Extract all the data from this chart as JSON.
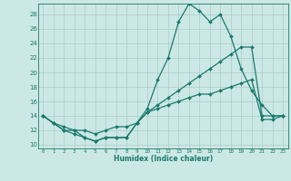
{
  "line1": {
    "x": [
      0,
      1,
      2,
      3,
      4,
      5,
      6,
      7,
      8,
      9,
      10,
      11,
      12,
      13,
      14,
      15,
      16,
      17,
      18,
      19,
      20,
      21,
      22,
      23
    ],
    "y": [
      14,
      13,
      12,
      12,
      11,
      10.5,
      11,
      11,
      11,
      13,
      15,
      19,
      22,
      27,
      29.5,
      28.5,
      27,
      28,
      25,
      20.5,
      17.5,
      15.5,
      14,
      14
    ],
    "color": "#1a7a6e",
    "marker": "D",
    "markersize": 2.0,
    "linewidth": 0.9
  },
  "line2": {
    "x": [
      0,
      1,
      2,
      3,
      4,
      5,
      6,
      7,
      8,
      9,
      10,
      11,
      12,
      13,
      14,
      15,
      16,
      17,
      18,
      19,
      20,
      21,
      22,
      23
    ],
    "y": [
      14,
      13,
      12.5,
      12,
      12,
      11.5,
      12,
      12.5,
      12.5,
      13,
      14.5,
      15.5,
      16.5,
      17.5,
      18.5,
      19.5,
      20.5,
      21.5,
      22.5,
      23.5,
      23.5,
      14,
      14,
      14
    ],
    "color": "#1a7a6e",
    "marker": "D",
    "markersize": 2.0,
    "linewidth": 0.9
  },
  "line3": {
    "x": [
      0,
      1,
      2,
      3,
      4,
      5,
      6,
      7,
      8,
      9,
      10,
      11,
      12,
      13,
      14,
      15,
      16,
      17,
      18,
      19,
      20,
      21,
      22,
      23
    ],
    "y": [
      14,
      13,
      12,
      11.5,
      11,
      10.5,
      11,
      11,
      11,
      13,
      14.5,
      15,
      15.5,
      16,
      16.5,
      17,
      17,
      17.5,
      18,
      18.5,
      19,
      13.5,
      13.5,
      14
    ],
    "color": "#1a7a6e",
    "marker": "D",
    "markersize": 2.0,
    "linewidth": 0.9
  },
  "ylim": [
    9.5,
    29.5
  ],
  "xlim": [
    -0.5,
    23.5
  ],
  "yticks": [
    10,
    12,
    14,
    16,
    18,
    20,
    22,
    24,
    26,
    28
  ],
  "xticks": [
    0,
    1,
    2,
    3,
    4,
    5,
    6,
    7,
    8,
    9,
    10,
    11,
    12,
    13,
    14,
    15,
    16,
    17,
    18,
    19,
    20,
    21,
    22,
    23
  ],
  "xlabel": "Humidex (Indice chaleur)",
  "bg_color": "#cce8e4",
  "grid_color": "#aacccc",
  "line_color": "#1a7a6e"
}
